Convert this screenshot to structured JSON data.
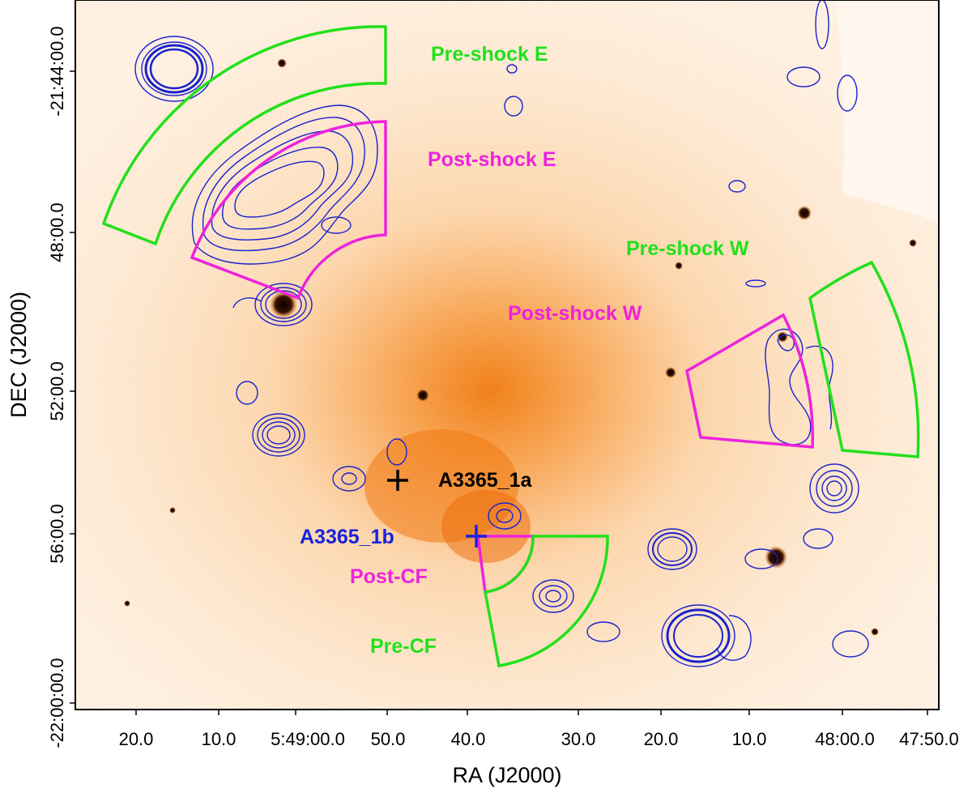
{
  "colors": {
    "preshock": "#22e01a",
    "postshock": "#ee22dd",
    "contour": "#1a22cc",
    "cluster_1a": "#000000",
    "cluster_1b": "#1a22dd"
  },
  "axes": {
    "x_title": "RA (J2000)",
    "y_title": "DEC (J2000)",
    "x_ticks": [
      "20.0",
      "10.0",
      "5:49:00.0",
      "50.0",
      "40.0",
      "30.0",
      "20.0",
      "10.0",
      "48:00.0",
      "47:50.0"
    ],
    "y_ticks": [
      "-21:44:00.0",
      "48:00.0",
      "52:00.0",
      "56:00.0",
      "-22:00:00.0"
    ]
  },
  "regions": {
    "preshock_e": "Pre-shock E",
    "postshock_e": "Post-shock E",
    "preshock_w": "Pre-shock W",
    "postshock_w": "Post-shock W",
    "post_cf": "Post-CF",
    "pre_cf": "Pre-CF"
  },
  "markers": {
    "a1": "A3365_1a",
    "b1": "A3365_1b"
  }
}
